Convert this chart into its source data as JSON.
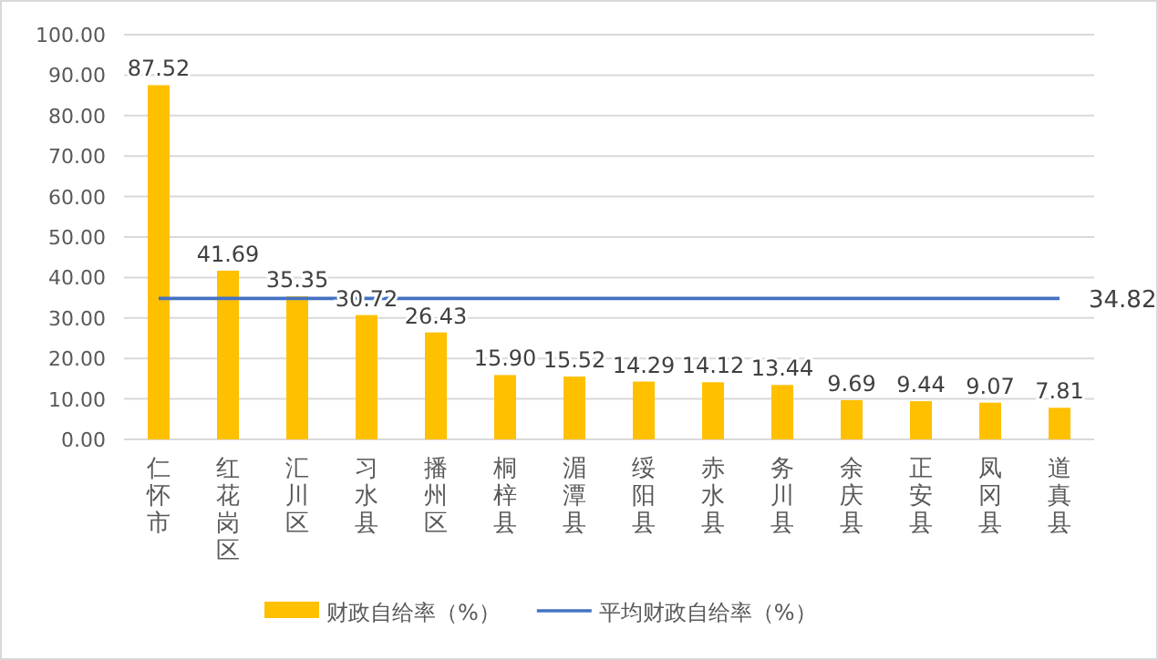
{
  "chart_data": {
    "type": "bar",
    "categories": [
      "仁怀市",
      "红花岗区",
      "汇川区",
      "习水县",
      "播州区",
      "桐梓县",
      "湄潭县",
      "绥阳县",
      "赤水县",
      "务川县",
      "余庆县",
      "正安县",
      "凤冈县",
      "道真县"
    ],
    "series": [
      {
        "name": "财政自给率（%）",
        "color": "#ffc000",
        "values": [
          87.52,
          41.69,
          35.35,
          30.72,
          26.43,
          15.9,
          15.52,
          14.29,
          14.12,
          13.44,
          9.69,
          9.44,
          9.07,
          7.81
        ],
        "value_labels": [
          "87.52",
          "41.69",
          "35.35",
          "30.72",
          "26.43",
          "15.90",
          "15.52",
          "14.29",
          "14.12",
          "13.44",
          "9.69",
          "9.44",
          "9.07",
          "7.81"
        ]
      },
      {
        "name": "平均财政自给率（%）",
        "type": "line",
        "color": "#4472c4",
        "values": [
          34.82,
          34.82,
          34.82,
          34.82,
          34.82,
          34.82,
          34.82,
          34.82,
          34.82,
          34.82,
          34.82,
          34.82,
          34.82,
          34.82
        ],
        "value_labels": [
          null,
          null,
          null,
          null,
          null,
          null,
          null,
          null,
          null,
          null,
          null,
          null,
          null,
          "34.82"
        ]
      }
    ],
    "ylim": [
      0,
      100
    ],
    "yticks": [
      {
        "value": 0,
        "label": "0.00"
      },
      {
        "value": 10,
        "label": "10.00"
      },
      {
        "value": 20,
        "label": "20.00"
      },
      {
        "value": 30,
        "label": "30.00"
      },
      {
        "value": 40,
        "label": "40.00"
      },
      {
        "value": 50,
        "label": "50.00"
      },
      {
        "value": 60,
        "label": "60.00"
      },
      {
        "value": 70,
        "label": "70.00"
      },
      {
        "value": 80,
        "label": "80.00"
      },
      {
        "value": 90,
        "label": "90.00"
      },
      {
        "value": 100,
        "label": "100.00"
      }
    ],
    "grid": "y",
    "legend": "bottom",
    "marker": "none"
  }
}
